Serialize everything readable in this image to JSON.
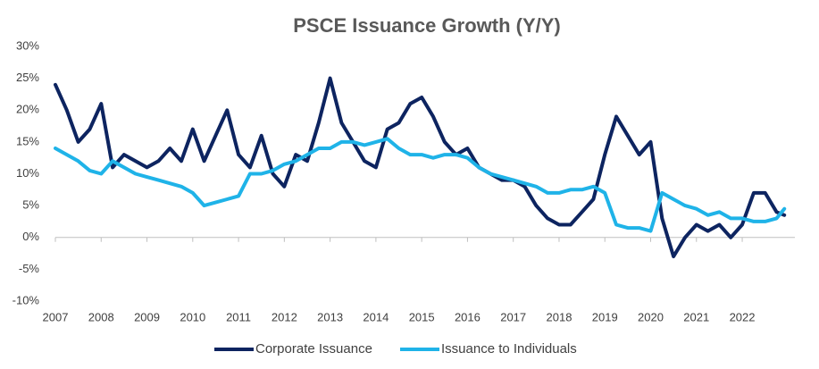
{
  "chart_data": {
    "type": "line",
    "title": "PSCE Issuance Growth (Y/Y)",
    "x": [
      2007,
      2007.25,
      2007.5,
      2007.75,
      2008,
      2008.25,
      2008.5,
      2008.75,
      2009,
      2009.25,
      2009.5,
      2009.75,
      2010,
      2010.25,
      2010.5,
      2010.75,
      2011,
      2011.25,
      2011.5,
      2011.75,
      2012,
      2012.25,
      2012.5,
      2012.75,
      2013,
      2013.25,
      2013.5,
      2013.75,
      2014,
      2014.25,
      2014.5,
      2014.75,
      2015,
      2015.25,
      2015.5,
      2015.75,
      2016,
      2016.25,
      2016.5,
      2016.75,
      2017,
      2017.25,
      2017.5,
      2017.75,
      2018,
      2018.25,
      2018.5,
      2018.75,
      2019,
      2019.25,
      2019.5,
      2019.75,
      2020,
      2020.25,
      2020.5,
      2020.75,
      2021,
      2021.25,
      2021.5,
      2021.75,
      2022,
      2022.25,
      2022.5,
      2022.75,
      2022.92
    ],
    "series": [
      {
        "name": "Corporate Issuance",
        "color": "#0d2460",
        "values": [
          24,
          20,
          15,
          17,
          21,
          11,
          13,
          12,
          11,
          12,
          14,
          12,
          17,
          12,
          16,
          20,
          13,
          11,
          16,
          10,
          8,
          13,
          12,
          18,
          25,
          18,
          15,
          12,
          11,
          17,
          18,
          21,
          22,
          19,
          15,
          13,
          14,
          11,
          10,
          9,
          9,
          8,
          5,
          3,
          2,
          2,
          4,
          6,
          13,
          19,
          16,
          13,
          15,
          3,
          -3,
          0,
          2,
          1,
          2,
          0,
          2,
          7,
          7,
          4,
          3.5
        ]
      },
      {
        "name": "Issuance to Individuals",
        "color": "#1fb3e8",
        "values": [
          14,
          13,
          12,
          10.5,
          10,
          12,
          11,
          10,
          9.5,
          9,
          8.5,
          8,
          7,
          5,
          5.5,
          6,
          6.5,
          10,
          10,
          10.5,
          11.5,
          12,
          13,
          14,
          14,
          15,
          15,
          14.5,
          15,
          15.5,
          14,
          13,
          13,
          12.5,
          13,
          13,
          12.5,
          11,
          10,
          9.5,
          9,
          8.5,
          8,
          7,
          7,
          7.5,
          7.5,
          8,
          7,
          2,
          1.5,
          1.5,
          1,
          7,
          6,
          5,
          4.5,
          3.5,
          4,
          3,
          3,
          2.5,
          2.5,
          3,
          4.5
        ]
      }
    ],
    "xlim": [
      2007,
      2023.15
    ],
    "xticks": [
      2007,
      2008,
      2009,
      2010,
      2011,
      2012,
      2013,
      2014,
      2015,
      2016,
      2017,
      2018,
      2019,
      2020,
      2021,
      2022
    ],
    "ylim": [
      -10,
      30
    ],
    "yticks": [
      {
        "value": -10,
        "label": "-10%"
      },
      {
        "value": -5,
        "label": "-5%"
      },
      {
        "value": 0,
        "label": "0%"
      },
      {
        "value": 5,
        "label": "5%"
      },
      {
        "value": 10,
        "label": "10%"
      },
      {
        "value": 15,
        "label": "15%"
      },
      {
        "value": 20,
        "label": "20%"
      },
      {
        "value": 25,
        "label": "25%"
      },
      {
        "value": 30,
        "label": "30%"
      }
    ],
    "grid": false,
    "legend": "bottom"
  }
}
